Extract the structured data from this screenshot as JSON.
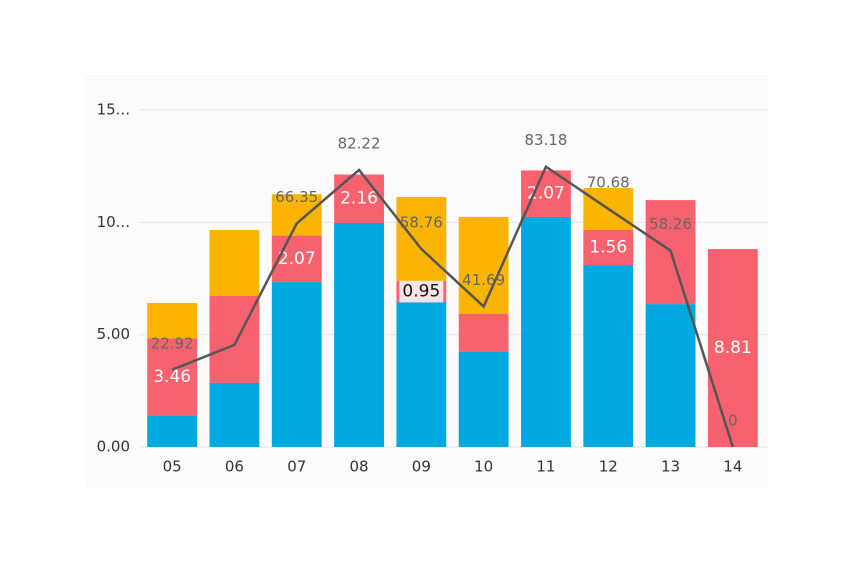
{
  "chart_data": {
    "type": "bar",
    "categories": [
      "05",
      "06",
      "07",
      "08",
      "09",
      "10",
      "11",
      "12",
      "13",
      "14"
    ],
    "series": [
      {
        "color": "#00a9e0",
        "values": [
          1.38,
          2.85,
          7.34,
          9.97,
          6.45,
          4.23,
          10.24,
          8.1,
          6.36,
          0
        ]
      },
      {
        "color": "#f8626e",
        "values": [
          3.46,
          3.87,
          2.07,
          2.16,
          0.95,
          1.69,
          2.07,
          1.56,
          4.63,
          8.81
        ],
        "value_labels": [
          "3.46",
          null,
          "2.07",
          "2.16",
          "0.95",
          null,
          "2.07",
          "1.56",
          null,
          "8.81"
        ]
      },
      {
        "color": "#fbb400",
        "values": [
          1.57,
          2.94,
          1.84,
          0,
          3.73,
          4.32,
          0,
          1.87,
          0,
          0
        ]
      },
      {
        "type": "line",
        "axis": "y2",
        "color": "#555555",
        "values": [
          22.92,
          30.3,
          66.35,
          82.22,
          58.76,
          41.69,
          83.18,
          70.68,
          58.26,
          0
        ],
        "value_labels": [
          "22.92",
          null,
          "66.35",
          "82.22",
          "58.76",
          "41.69",
          "83.18",
          "70.68",
          "58.26",
          "0"
        ]
      }
    ],
    "ylim": [
      0,
      15
    ],
    "yticks": [
      {
        "value": 0,
        "label": "0.00"
      },
      {
        "value": 5,
        "label": "5.00"
      },
      {
        "value": 10,
        "label": "10..."
      },
      {
        "value": 15,
        "label": "15..."
      }
    ],
    "y2lim": [
      0,
      100
    ],
    "grid": true
  }
}
